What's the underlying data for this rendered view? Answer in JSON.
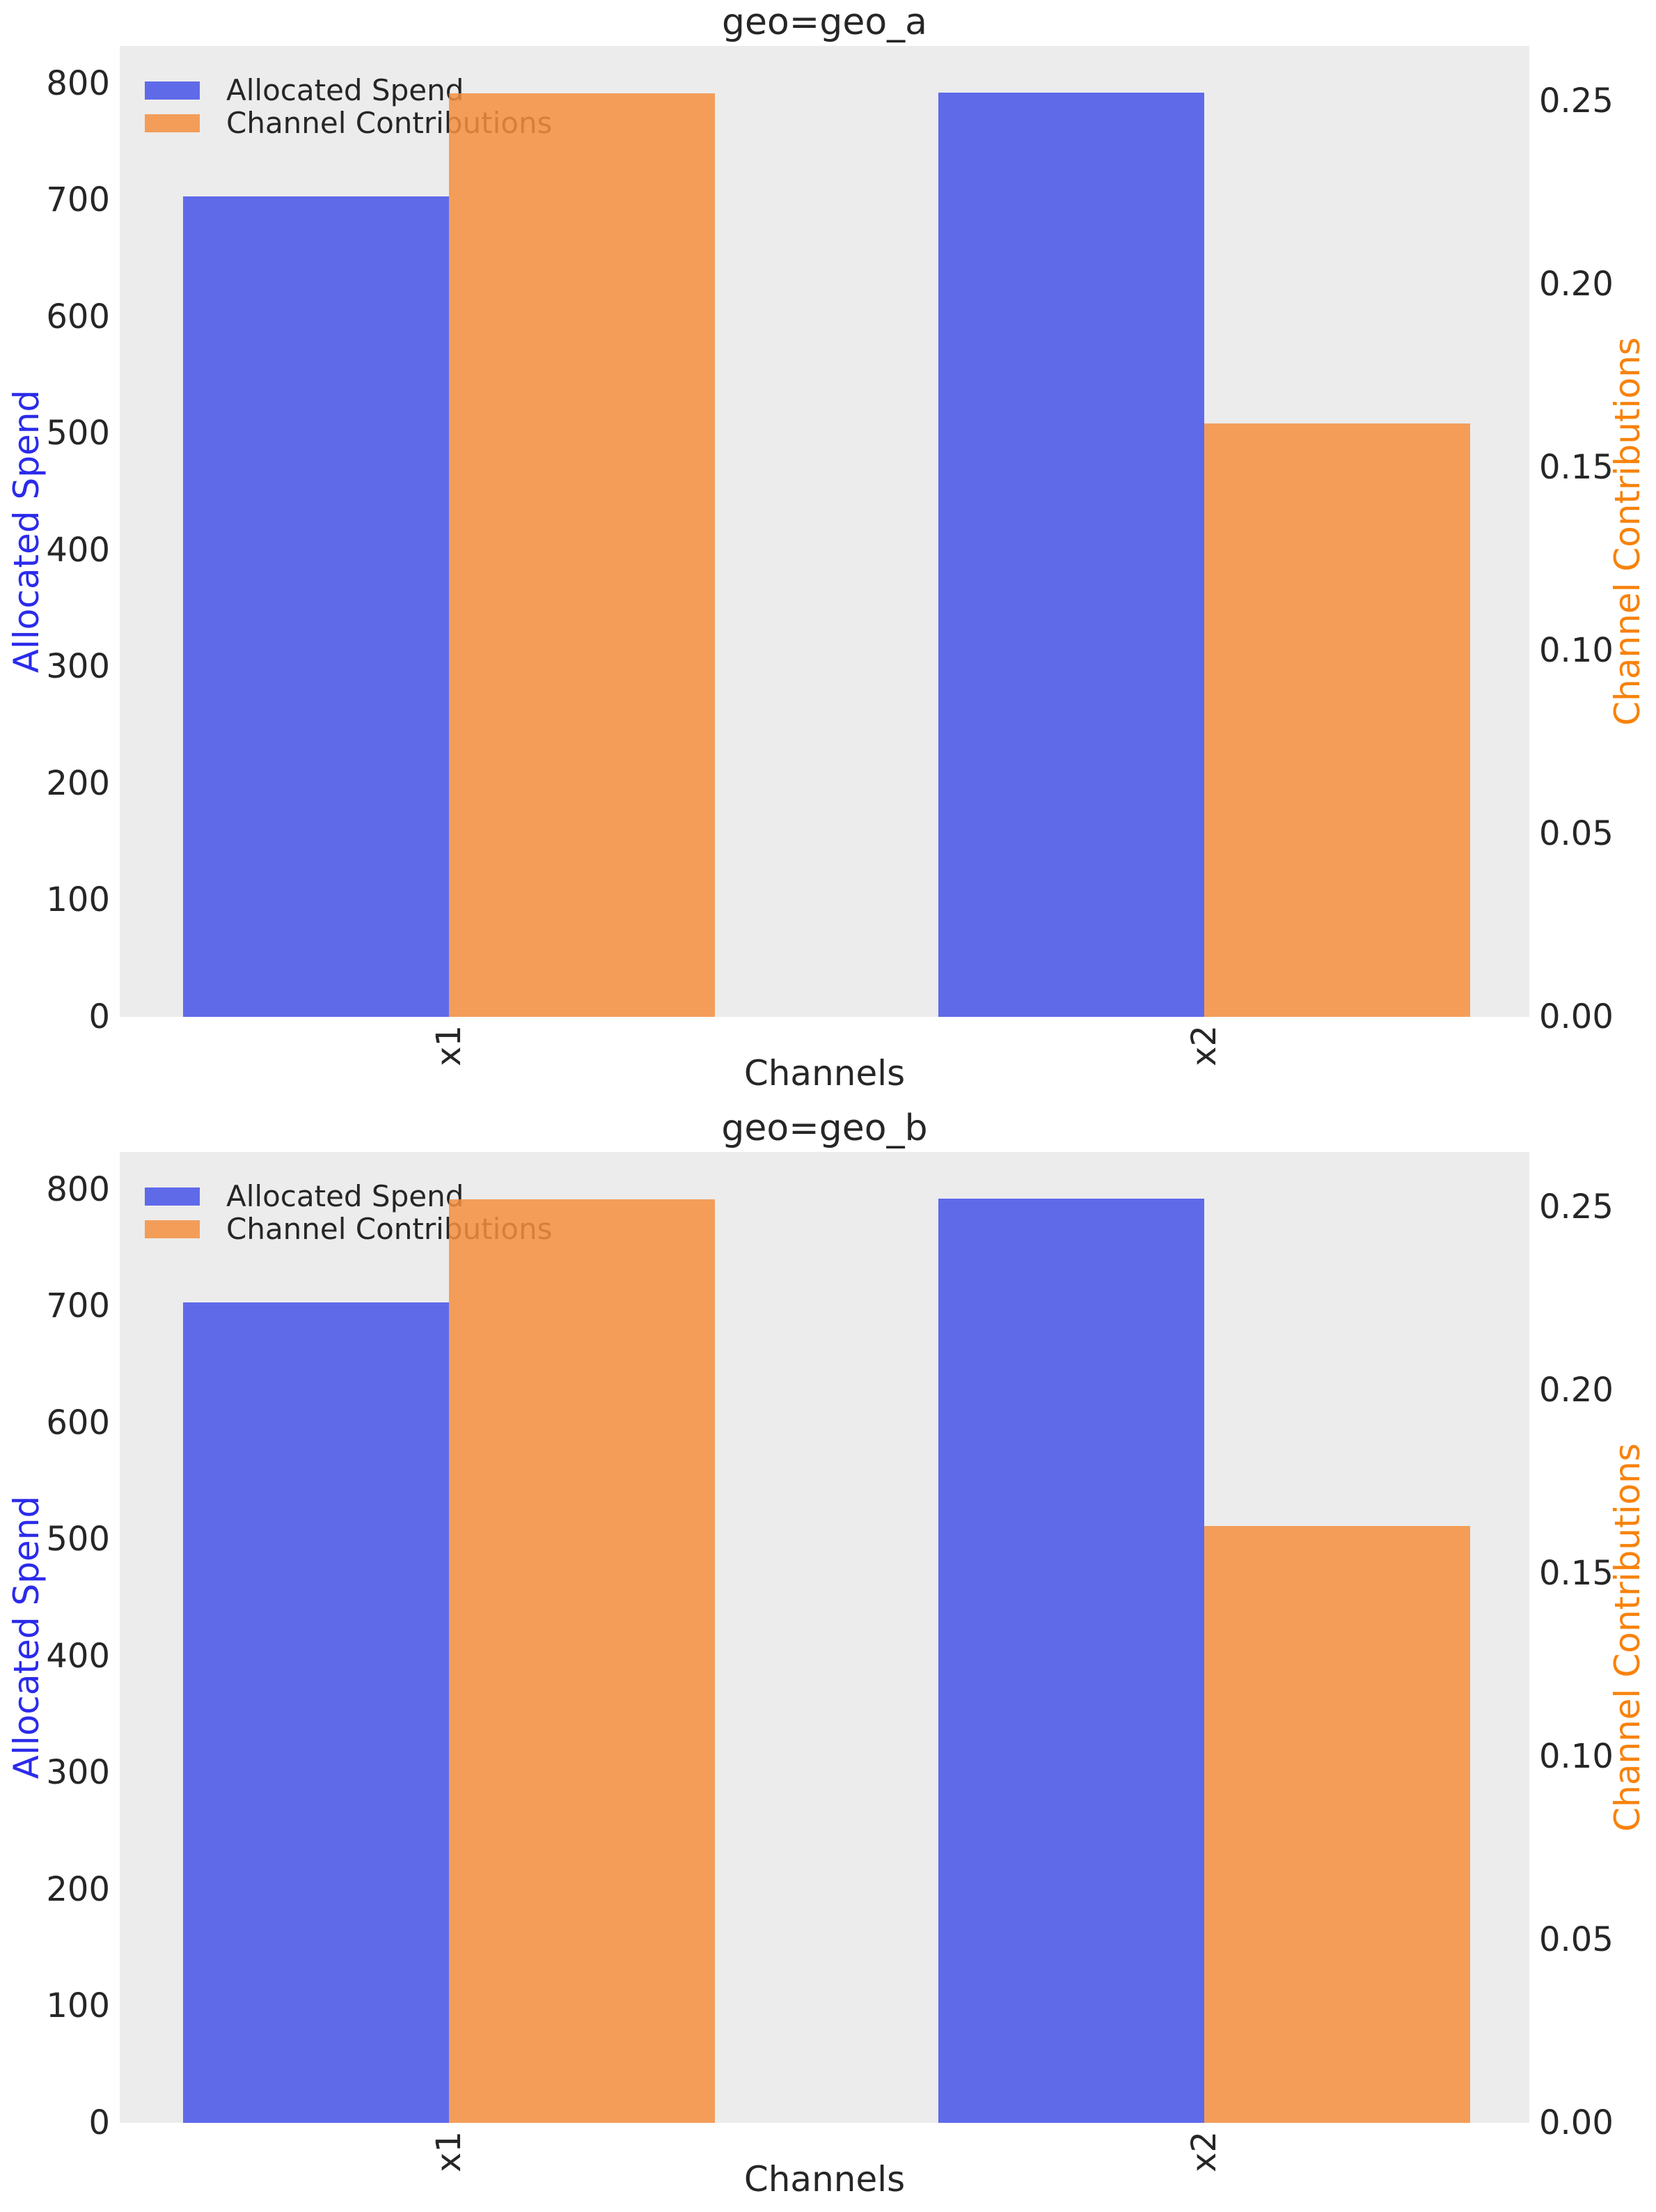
{
  "figure": {
    "background": "#ffffff",
    "plot_background": "#ECECEC",
    "text_color": "#262626"
  },
  "chart_data": [
    {
      "type": "bar",
      "title": "geo=geo_a",
      "xlabel": "Channels",
      "categories": [
        "x1",
        "x2"
      ],
      "legend_position": "upper-left",
      "grid": false,
      "left_axis": {
        "label": "Allocated Spend",
        "color": "#2B2BEB",
        "ticks": [
          0,
          100,
          200,
          300,
          400,
          500,
          600,
          700,
          800
        ],
        "lim": [
          0,
          832
        ]
      },
      "right_axis": {
        "label": "Channel Contributions",
        "color": "#F8820B",
        "ticks": [
          "0.00",
          "0.05",
          "0.10",
          "0.15",
          "0.20",
          "0.25"
        ],
        "lim": [
          0,
          0.265
        ]
      },
      "series": [
        {
          "name": "Allocated Spend",
          "axis": "left",
          "color": "#4753E9",
          "values": [
            703,
            792
          ]
        },
        {
          "name": "Channel Contributions",
          "axis": "right",
          "color": "#F58F3F",
          "values": [
            0.252,
            0.162
          ]
        }
      ]
    },
    {
      "type": "bar",
      "title": "geo=geo_b",
      "xlabel": "Channels",
      "categories": [
        "x1",
        "x2"
      ],
      "legend_position": "upper-left",
      "grid": false,
      "left_axis": {
        "label": "Allocated Spend",
        "color": "#2B2BEB",
        "ticks": [
          0,
          100,
          200,
          300,
          400,
          500,
          600,
          700,
          800
        ],
        "lim": [
          0,
          832
        ]
      },
      "right_axis": {
        "label": "Channel Contributions",
        "color": "#F8820B",
        "ticks": [
          "0.00",
          "0.05",
          "0.10",
          "0.15",
          "0.20",
          "0.25"
        ],
        "lim": [
          0,
          0.265
        ]
      },
      "series": [
        {
          "name": "Allocated Spend",
          "axis": "left",
          "color": "#4753E9",
          "values": [
            703,
            792
          ]
        },
        {
          "name": "Channel Contributions",
          "axis": "right",
          "color": "#F58F3F",
          "values": [
            0.252,
            0.163
          ]
        }
      ]
    }
  ]
}
